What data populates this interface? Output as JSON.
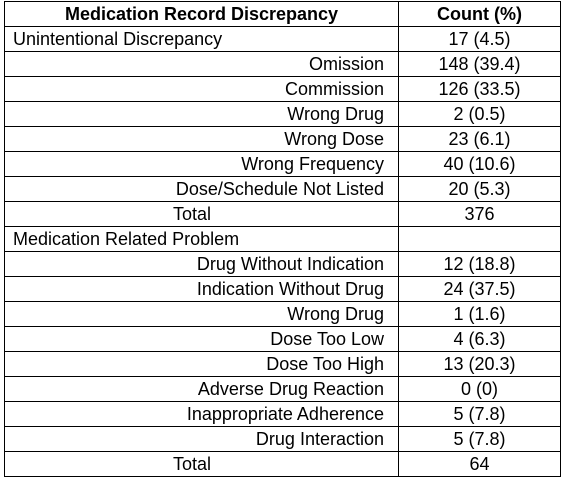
{
  "table": {
    "headers": [
      "Medication Record Discrepancy",
      "Count (%)"
    ],
    "rows": [
      {
        "label": "Unintentional Discrepancy",
        "value": "17 (4.5)",
        "kind": "section"
      },
      {
        "label": "Omission",
        "value": "148 (39.4)",
        "kind": "item"
      },
      {
        "label": "Commission",
        "value": "126 (33.5)",
        "kind": "item"
      },
      {
        "label": "Wrong Drug",
        "value": "2 (0.5)",
        "kind": "item"
      },
      {
        "label": "Wrong Dose",
        "value": "23 (6.1)",
        "kind": "item"
      },
      {
        "label": "Wrong Frequency",
        "value": "40 (10.6)",
        "kind": "item"
      },
      {
        "label": "Dose/Schedule Not Listed",
        "value": "20 (5.3)",
        "kind": "item"
      },
      {
        "label": "Total",
        "value": "376",
        "kind": "total"
      },
      {
        "label": "Medication Related Problem",
        "value": "",
        "kind": "section"
      },
      {
        "label": "Drug Without Indication",
        "value": "12 (18.8)",
        "kind": "item"
      },
      {
        "label": "Indication Without Drug",
        "value": "24 (37.5)",
        "kind": "item"
      },
      {
        "label": "Wrong Drug",
        "value": "1 (1.6)",
        "kind": "item"
      },
      {
        "label": "Dose Too Low",
        "value": "4 (6.3)",
        "kind": "item"
      },
      {
        "label": "Dose Too High",
        "value": "13 (20.3)",
        "kind": "item"
      },
      {
        "label": "Adverse Drug Reaction",
        "value": "0 (0)",
        "kind": "item"
      },
      {
        "label": "Inappropriate Adherence",
        "value": "5 (7.8)",
        "kind": "item"
      },
      {
        "label": "Drug Interaction",
        "value": "5 (7.8)",
        "kind": "item"
      },
      {
        "label": "Total",
        "value": "64",
        "kind": "total"
      }
    ]
  }
}
